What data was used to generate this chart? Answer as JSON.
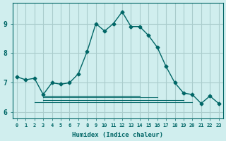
{
  "xlabel": "Humidex (Indice chaleur)",
  "background_color": "#d0eeee",
  "grid_color": "#aacccc",
  "line_color": "#006666",
  "x_ticks": [
    0,
    1,
    2,
    3,
    4,
    5,
    6,
    7,
    8,
    9,
    10,
    11,
    12,
    13,
    14,
    15,
    16,
    17,
    18,
    19,
    20,
    21,
    22,
    23
  ],
  "y_ticks": [
    6,
    7,
    8,
    9
  ],
  "ylim": [
    5.8,
    9.7
  ],
  "xlim": [
    -0.5,
    23.5
  ],
  "main_series": {
    "x": [
      0,
      1,
      2,
      3,
      4,
      5,
      6,
      7,
      8,
      9,
      10,
      11,
      12,
      13,
      14,
      15,
      16,
      17,
      18,
      19,
      20,
      21,
      22,
      23
    ],
    "y": [
      7.2,
      7.1,
      7.15,
      6.6,
      7.0,
      6.95,
      7.0,
      7.3,
      8.05,
      9.0,
      8.75,
      9.0,
      9.4,
      8.9,
      8.9,
      8.6,
      8.2,
      7.55,
      7.0,
      6.65,
      6.6,
      6.3,
      6.55,
      6.3
    ]
  },
  "flat_lines": [
    {
      "x": [
        2,
        20
      ],
      "y": [
        6.35,
        6.35
      ]
    },
    {
      "x": [
        3,
        19
      ],
      "y": [
        6.42,
        6.42
      ]
    },
    {
      "x": [
        3,
        16
      ],
      "y": [
        6.5,
        6.5
      ]
    },
    {
      "x": [
        3,
        14
      ],
      "y": [
        6.55,
        6.55
      ]
    }
  ]
}
